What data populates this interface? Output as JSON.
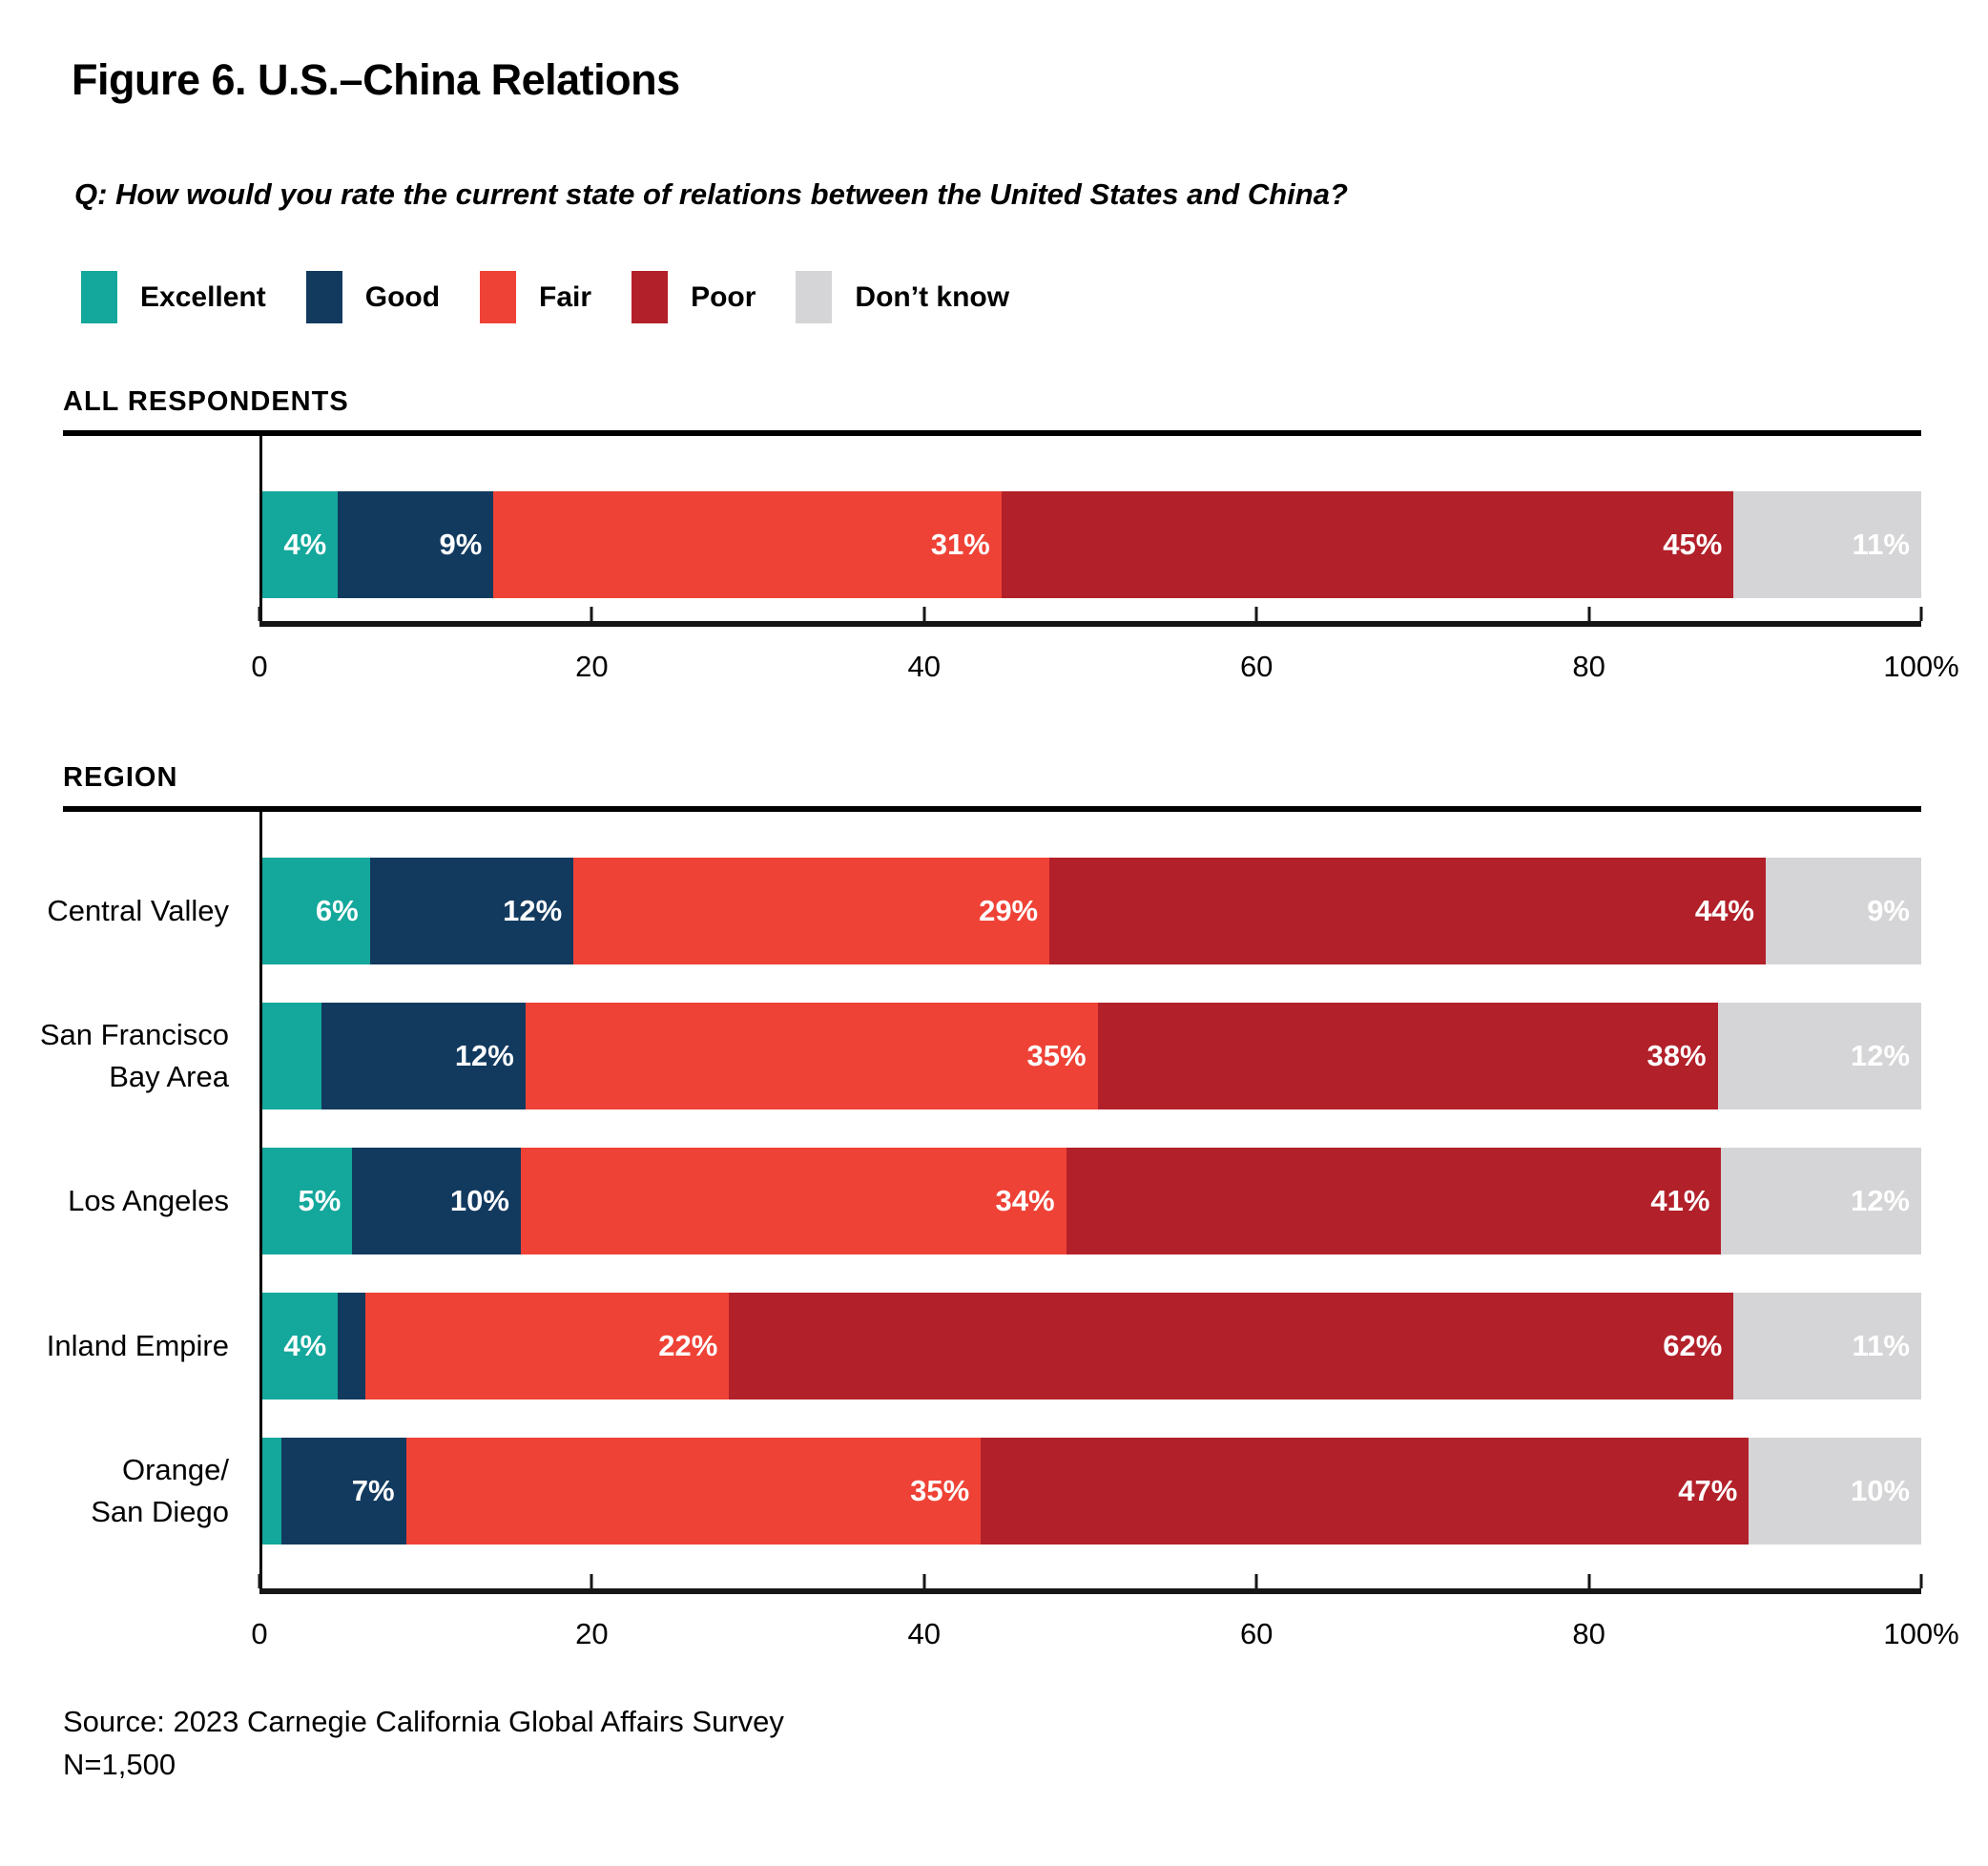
{
  "header": {
    "title": "Figure 6. U.S.–China Relations",
    "question": "Q: How would you rate the current state of relations between the United States and China?"
  },
  "legend": {
    "items": [
      {
        "label": "Excellent",
        "color": "#14A79B"
      },
      {
        "label": "Good",
        "color": "#123A5F"
      },
      {
        "label": "Fair",
        "color": "#EF4236"
      },
      {
        "label": "Poor",
        "color": "#B2202A"
      },
      {
        "label": "Don’t know",
        "color": "#D5D5D7"
      }
    ]
  },
  "chart_data": {
    "type": "bar",
    "orientation": "horizontal",
    "stacked": true,
    "series_order": [
      "Excellent",
      "Good",
      "Fair",
      "Poor",
      "Don’t know"
    ],
    "colors": [
      "#14A79B",
      "#123A5F",
      "#EF4236",
      "#B2202A",
      "#D5D5D7"
    ],
    "x_axis": {
      "range": [
        0,
        100
      ],
      "tick_step": 20,
      "ticks": [
        "0",
        "20",
        "40",
        "60",
        "80",
        "100%"
      ]
    },
    "sections": [
      {
        "heading": "ALL RESPONDENTS",
        "rows": [
          {
            "label": "",
            "values": [
              4,
              9,
              31,
              45,
              11
            ],
            "labels": [
              "4%",
              "9%",
              "31%",
              "45%",
              "11%"
            ]
          }
        ]
      },
      {
        "heading": "REGION",
        "rows": [
          {
            "label": "Central Valley",
            "values": [
              6,
              12,
              29,
              44,
              9
            ],
            "labels": [
              "6%",
              "12%",
              "29%",
              "44%",
              "9%"
            ]
          },
          {
            "label": "San Francisco\nBay Area",
            "values": [
              3,
              12,
              35,
              38,
              12
            ],
            "labels": [
              "",
              "12%",
              "35%",
              "38%",
              "12%"
            ]
          },
          {
            "label": "Los Angeles",
            "values": [
              5,
              10,
              34,
              41,
              12
            ],
            "labels": [
              "5%",
              "10%",
              "34%",
              "41%",
              "12%"
            ]
          },
          {
            "label": "Inland Empire",
            "values": [
              4,
              1,
              22,
              62,
              11
            ],
            "labels": [
              "4%",
              "",
              "22%",
              "62%",
              "11%"
            ]
          },
          {
            "label": "Orange/\nSan Diego",
            "values": [
              0.5,
              7,
              35,
              47,
              10
            ],
            "labels": [
              "",
              "7%",
              "35%",
              "47%",
              "10%"
            ]
          }
        ]
      }
    ]
  },
  "footer": {
    "source": "Source: 2023 Carnegie California Global Affairs Survey",
    "sample": "N=1,500"
  }
}
